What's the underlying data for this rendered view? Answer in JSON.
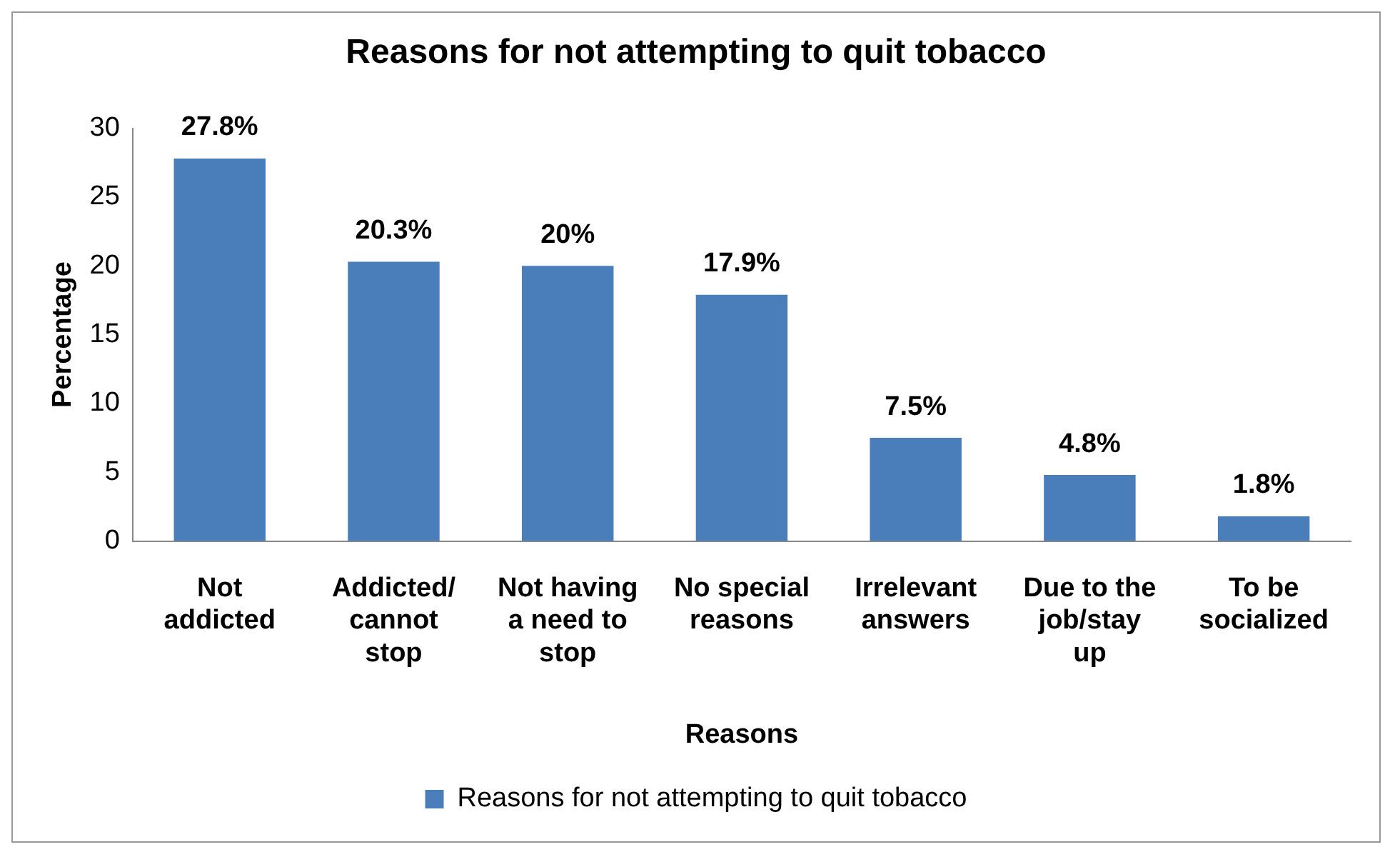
{
  "chart_data": {
    "type": "bar",
    "title": "Reasons for not attempting to quit tobacco",
    "xlabel": "Reasons",
    "ylabel": "Percentage",
    "categories": [
      "Not addicted",
      "Addicted/ cannot stop",
      "Not having a need to stop",
      "No special reasons",
      "Irrelevant answers",
      "Due to the job/stay up",
      "To be socialized"
    ],
    "series": [
      {
        "name": "Reasons for not attempting to quit tobacco",
        "color": "#4a7ebb",
        "values": [
          27.8,
          20.3,
          20,
          17.9,
          7.5,
          4.8,
          1.8
        ],
        "value_labels": [
          "27.8%",
          "20.3%",
          "20%",
          "17.9%",
          "7.5%",
          "4.8%",
          "1.8%"
        ]
      }
    ],
    "ylim": [
      0,
      30
    ],
    "yticks": [
      0,
      5,
      10,
      15,
      20,
      25,
      30
    ],
    "grid": false,
    "legend": "bottom"
  }
}
